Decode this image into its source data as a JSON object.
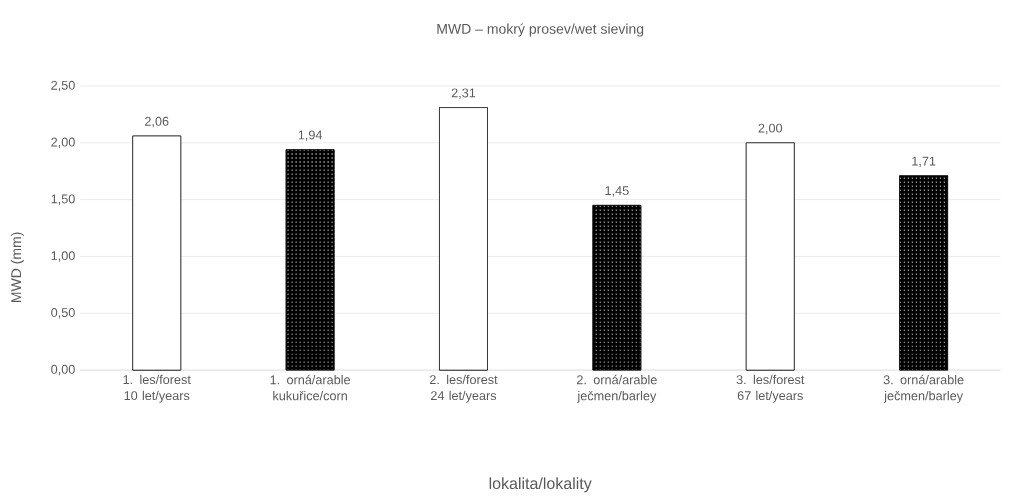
{
  "chart_data": {
    "type": "bar",
    "title": "MWD – mokrý prosev/wet sieving",
    "xlabel": "lokalita/lokality",
    "ylabel": "MWD (mm)",
    "categories": [
      "1. les/forest 10 let/years",
      "1. orná/arable kukuřice/corn",
      "2. les/forest 24 let/years",
      "2. orná/arable ječmen/barley",
      "3. les/forest 67 let/years",
      "3. orná/arable ječmen/barley"
    ],
    "values": [
      2.06,
      1.94,
      2.31,
      1.45,
      2.0,
      1.71
    ],
    "value_labels": [
      "2,06",
      "1,94",
      "2,31",
      "1,45",
      "2,00",
      "1,71"
    ],
    "colors": [
      "#ffffff",
      "#000000",
      "#ffffff",
      "#000000",
      "#ffffff",
      "#000000"
    ],
    "ylim": [
      0,
      2.5
    ],
    "yticks": [
      {
        "value": 0,
        "label": "0,00"
      },
      {
        "value": 0.5,
        "label": "0,50"
      },
      {
        "value": 1,
        "label": "1,00"
      },
      {
        "value": 1.5,
        "label": "1,50"
      },
      {
        "value": 2,
        "label": "2,00"
      },
      {
        "value": 2.5,
        "label": "2,50"
      }
    ],
    "grid": "y"
  }
}
